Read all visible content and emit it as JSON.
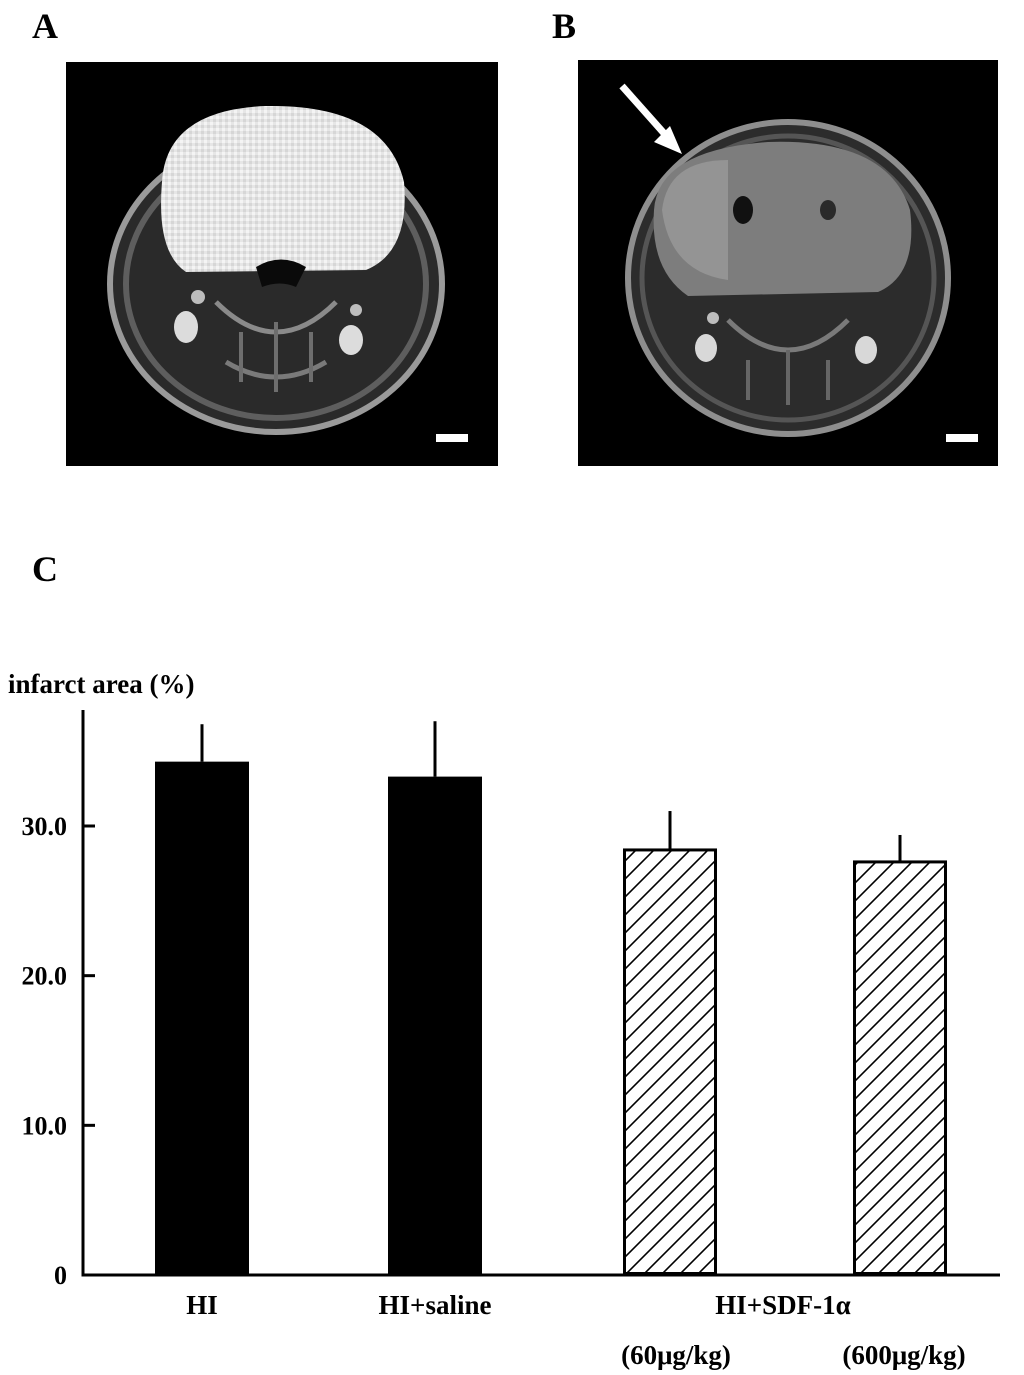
{
  "panels": {
    "a": {
      "label": "A"
    },
    "b": {
      "label": "B"
    },
    "c": {
      "label": "C"
    }
  },
  "chart_data": {
    "type": "bar",
    "title": "",
    "xlabel": "",
    "ylabel": "infarct area (%)",
    "ylim": [
      0,
      38
    ],
    "yticks": [
      {
        "value": 0,
        "label": "0"
      },
      {
        "value": 10,
        "label": "10.0"
      },
      {
        "value": 20,
        "label": "20.0"
      },
      {
        "value": 30,
        "label": "30.0"
      }
    ],
    "categories": [
      "HI",
      "HI+saline",
      "HI+SDF-1α (60μg/kg)",
      "HI+SDF-1α (600μg/kg)"
    ],
    "values": [
      34.3,
      33.3,
      28.4,
      27.6
    ],
    "errors": [
      2.5,
      3.7,
      2.6,
      1.8
    ],
    "fills": [
      "solid",
      "solid",
      "hatched",
      "hatched"
    ],
    "group_label": "HI+SDF-1α",
    "tick_labels": [
      "HI",
      "HI+saline",
      "(60μg/kg)",
      "(600μg/kg)"
    ]
  },
  "colors": {
    "bar": "#000000",
    "background": "#ffffff",
    "mri_bg": "#000000"
  }
}
